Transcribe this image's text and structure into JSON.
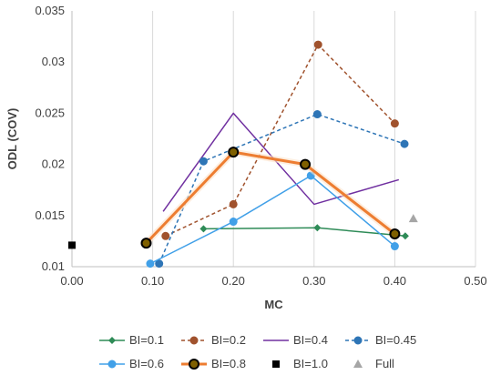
{
  "chart_data": {
    "type": "line",
    "title": "",
    "xlabel": "MC",
    "ylabel": "ODL (COV)",
    "xlim": [
      0,
      0.5
    ],
    "ylim": [
      0.01,
      0.035
    ],
    "x_ticks": [
      "0.00",
      "0.10",
      "0.20",
      "0.30",
      "0.40",
      "0.50"
    ],
    "y_ticks": [
      "0.01",
      "0.015",
      "0.02",
      "0.025",
      "0.03",
      "0.035"
    ],
    "grid": "vertical",
    "legend_position": "bottom",
    "series": [
      {
        "name": "BI=0.1",
        "color": "#2e8b57",
        "dash": "solid",
        "marker": "diamond",
        "points": [
          [
            0.163,
            0.0137
          ],
          [
            0.304,
            0.0138
          ],
          [
            0.413,
            0.013
          ]
        ]
      },
      {
        "name": "BI=0.2",
        "color": "#a0522d",
        "dash": "dashed",
        "marker": "circle",
        "points": [
          [
            0.116,
            0.013
          ],
          [
            0.2,
            0.0161
          ],
          [
            0.305,
            0.0317
          ],
          [
            0.4,
            0.024
          ]
        ]
      },
      {
        "name": "BI=0.4",
        "color": "#7030a0",
        "dash": "solid",
        "marker": "none",
        "points": [
          [
            0.113,
            0.0154
          ],
          [
            0.2,
            0.025
          ],
          [
            0.3,
            0.0161
          ],
          [
            0.405,
            0.0185
          ]
        ]
      },
      {
        "name": "BI=0.45",
        "color": "#2e75b6",
        "dash": "dashed",
        "marker": "circle",
        "points": [
          [
            0.108,
            0.0103
          ],
          [
            0.163,
            0.0203
          ],
          [
            0.304,
            0.0249
          ],
          [
            0.412,
            0.022
          ]
        ]
      },
      {
        "name": "BI=0.6",
        "color": "#41a0e8",
        "dash": "solid",
        "marker": "circle",
        "points": [
          [
            0.097,
            0.0103
          ],
          [
            0.2,
            0.0144
          ],
          [
            0.296,
            0.0189
          ],
          [
            0.4,
            0.012
          ]
        ]
      },
      {
        "name": "BI=0.8",
        "color": "#ed7d31",
        "dash": "solid",
        "marker": "ring",
        "points": [
          [
            0.092,
            0.0123
          ],
          [
            0.2,
            0.0212
          ],
          [
            0.289,
            0.02
          ],
          [
            0.4,
            0.0132
          ]
        ]
      },
      {
        "name": "BI=1.0",
        "color": "#000000",
        "dash": "solid",
        "marker": "square",
        "points": [
          [
            0.0,
            0.0121
          ]
        ]
      },
      {
        "name": "Full",
        "color": "#a6a6a6",
        "dash": "solid",
        "marker": "triangle",
        "points": [
          [
            0.423,
            0.0147
          ]
        ]
      }
    ]
  }
}
